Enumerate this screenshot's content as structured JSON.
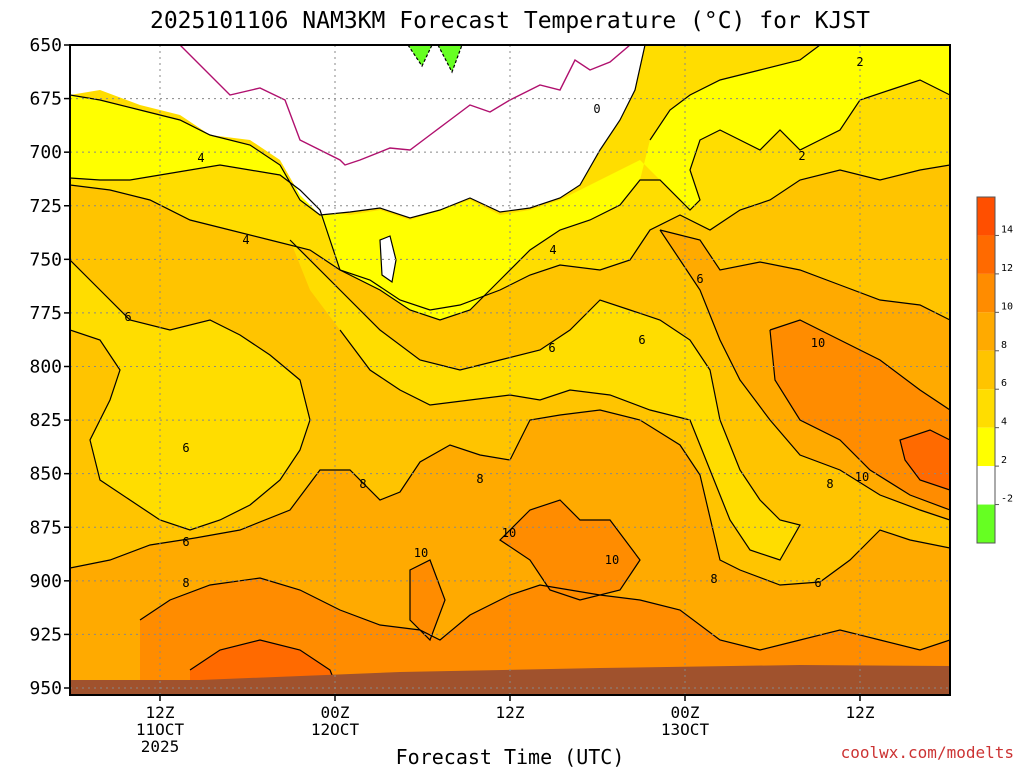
{
  "chart_data": {
    "type": "heatmap",
    "title": "2025101106 NAM3KM Forecast Temperature (°C) for KJST",
    "xlabel": "Forecast Time (UTC)",
    "ylabel": "",
    "y_axis": {
      "ticks": [
        "650",
        "675",
        "700",
        "725",
        "750",
        "775",
        "800",
        "825",
        "850",
        "875",
        "900",
        "925",
        "950"
      ],
      "range": [
        650,
        950
      ],
      "inverted": true
    },
    "x_axis": {
      "ticks": [
        {
          "hour": "12Z",
          "date": "11OCT",
          "year": "2025"
        },
        {
          "hour": "00Z",
          "date": "12OCT",
          "year": ""
        },
        {
          "hour": "12Z",
          "date": "",
          "year": ""
        },
        {
          "hour": "00Z",
          "date": "13OCT",
          "year": ""
        },
        {
          "hour": "12Z",
          "date": "",
          "year": ""
        }
      ]
    },
    "colorbar": {
      "labels": [
        "14",
        "12",
        "10",
        "8",
        "6",
        "4",
        "2",
        "-2"
      ],
      "levels": [
        {
          "from": -4,
          "to": -2,
          "color": "#66ff22"
        },
        {
          "from": -2,
          "to": 2,
          "color": "#ffffff"
        },
        {
          "from": 2,
          "to": 4,
          "color": "#ffff00"
        },
        {
          "from": 4,
          "to": 6,
          "color": "#ffdd00"
        },
        {
          "from": 6,
          "to": 8,
          "color": "#ffc400"
        },
        {
          "from": 8,
          "to": 10,
          "color": "#ffaa00"
        },
        {
          "from": 10,
          "to": 12,
          "color": "#ff8c00"
        },
        {
          "from": 12,
          "to": 14,
          "color": "#ff6a00"
        },
        {
          "from": 14,
          "to": 16,
          "color": "#ff4f00"
        }
      ]
    },
    "contour_labels": [
      "2",
      "0",
      "4",
      "2",
      "4",
      "4",
      "6",
      "6",
      "6",
      "6",
      "6",
      "6",
      "8",
      "8",
      "8",
      "8",
      "10",
      "10",
      "10",
      "10",
      "10",
      "8",
      "6"
    ],
    "ground_color": "#a0522d",
    "zero_line_color": "#b0106e",
    "credit": "coolwx.com/modelts"
  }
}
